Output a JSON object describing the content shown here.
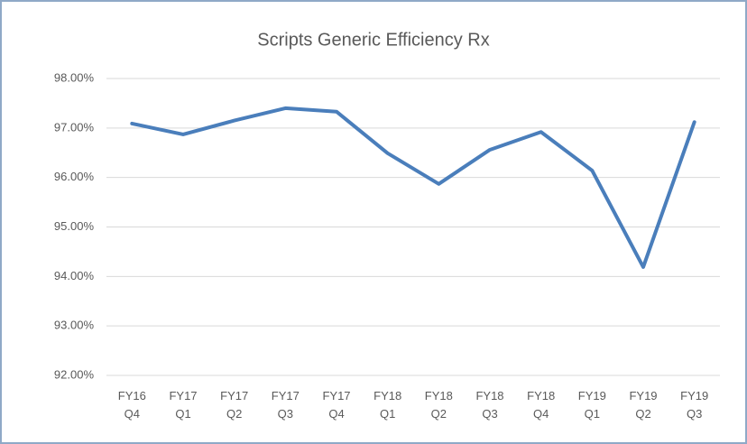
{
  "chart_data": {
    "type": "line",
    "title": "Scripts Generic Efficiency Rx",
    "categories": [
      [
        "FY16",
        "Q4"
      ],
      [
        "FY17",
        "Q1"
      ],
      [
        "FY17",
        "Q2"
      ],
      [
        "FY17",
        "Q3"
      ],
      [
        "FY17",
        "Q4"
      ],
      [
        "FY18",
        "Q1"
      ],
      [
        "FY18",
        "Q2"
      ],
      [
        "FY18",
        "Q3"
      ],
      [
        "FY18",
        "Q4"
      ],
      [
        "FY19",
        "Q1"
      ],
      [
        "FY19",
        "Q2"
      ],
      [
        "FY19",
        "Q3"
      ]
    ],
    "series": [
      {
        "name": "Scripts Generic Efficiency Rx",
        "color": "#4a7ebb",
        "values": [
          97.09,
          96.87,
          97.15,
          97.4,
          97.33,
          96.49,
          95.87,
          96.56,
          96.92,
          96.14,
          94.19,
          97.12
        ]
      }
    ],
    "ylim": [
      92,
      98
    ],
    "yticks": [
      {
        "value": 92,
        "label": "92.00%"
      },
      {
        "value": 93,
        "label": "93.00%"
      },
      {
        "value": 94,
        "label": "94.00%"
      },
      {
        "value": 95,
        "label": "95.00%"
      },
      {
        "value": 96,
        "label": "96.00%"
      },
      {
        "value": 97,
        "label": "97.00%"
      },
      {
        "value": 98,
        "label": "98.00%"
      }
    ],
    "grid": true
  }
}
